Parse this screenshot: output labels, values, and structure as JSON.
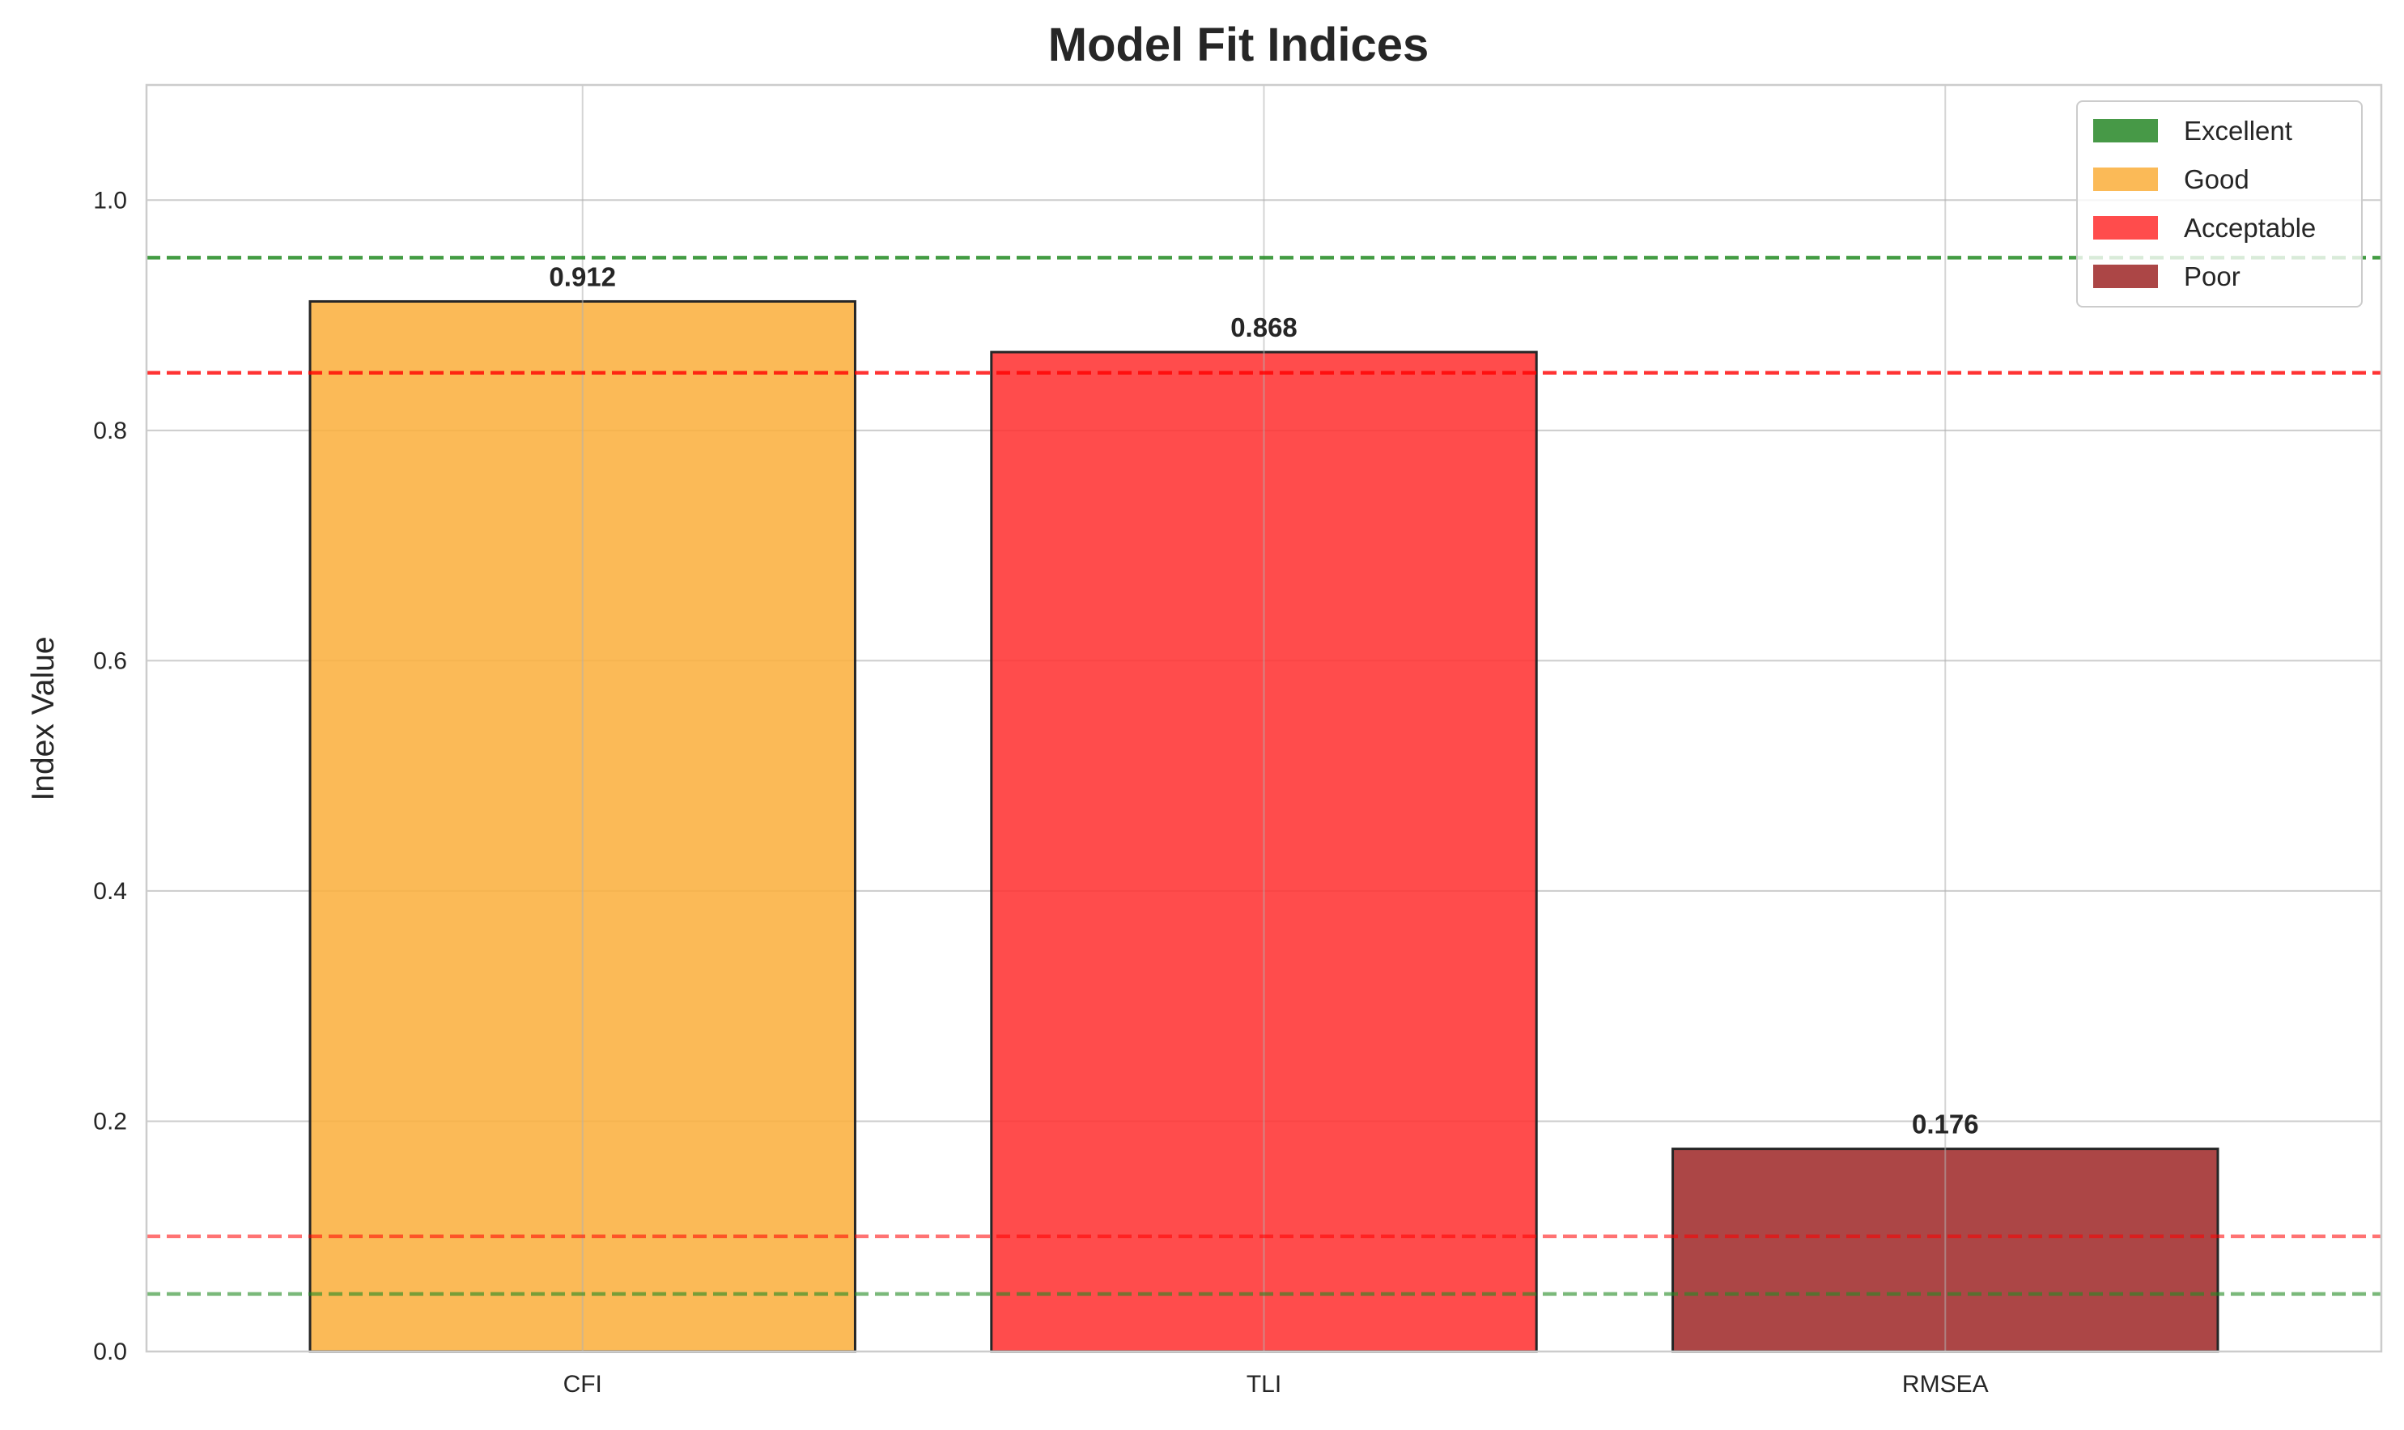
{
  "chart_data": {
    "type": "bar",
    "title": "Model Fit Indices",
    "xlabel": "",
    "ylabel": "Index Value",
    "categories": [
      "CFI",
      "TLI",
      "RMSEA"
    ],
    "values": [
      0.912,
      0.868,
      0.176
    ],
    "value_labels": [
      "0.912",
      "0.868",
      "0.176"
    ],
    "bar_colors": [
      "#FBB040",
      "#FF3333",
      "#A02C2C"
    ],
    "ylim": [
      0,
      1.1
    ],
    "yticks": [
      0.0,
      0.2,
      0.4,
      0.6,
      0.8,
      1.0
    ],
    "ytick_labels": [
      "0.0",
      "0.2",
      "0.4",
      "0.6",
      "0.8",
      "1.0"
    ],
    "grid": true,
    "reference_lines": [
      {
        "y": 0.95,
        "color": "#228B22",
        "alpha": 0.85
      },
      {
        "y": 0.85,
        "color": "#FF0000",
        "alpha": 0.8
      },
      {
        "y": 0.1,
        "color": "#FF0000",
        "alpha": 0.55
      },
      {
        "y": 0.05,
        "color": "#228B22",
        "alpha": 0.6
      }
    ],
    "legend": {
      "placement": "top-right",
      "entries": [
        {
          "label": "Excellent",
          "color": "#2E8B2E"
        },
        {
          "label": "Good",
          "color": "#FBB040"
        },
        {
          "label": "Acceptable",
          "color": "#FF3333"
        },
        {
          "label": "Poor",
          "color": "#A02C2C"
        }
      ]
    }
  }
}
